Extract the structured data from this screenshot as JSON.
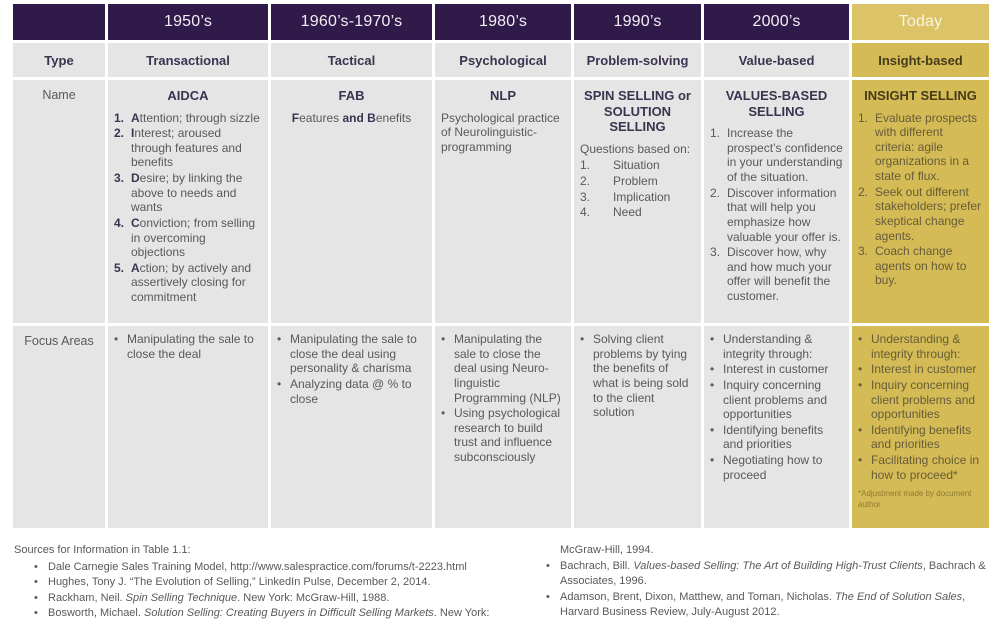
{
  "colors": {
    "header_purple": "#301a4a",
    "today_header_gold": "#dcc368",
    "today_cell_gold": "#d5bb56",
    "cell_gray": "#e6e5e5",
    "body_text": "#595959",
    "heading_text": "#3b3350",
    "today_heading_text": "#453b1a",
    "today_body_text": "#655c38",
    "footnote_text": "#8e7a33"
  },
  "row_labels": {
    "type": "Type",
    "name": "Name",
    "focus": "Focus Areas"
  },
  "columns": [
    {
      "era": "1950’s",
      "type": "Transactional",
      "name": {
        "title": "AIDCA",
        "list": {
          "style": "boldfirst",
          "items": [
            [
              [
                "b",
                "A"
              ],
              [
                "t",
                "ttention; through sizzle"
              ]
            ],
            [
              [
                "b",
                "I"
              ],
              [
                "t",
                "nterest; aroused through features and benefits"
              ]
            ],
            [
              [
                "b",
                "D"
              ],
              [
                "t",
                "esire; by linking the above to needs and wants"
              ]
            ],
            [
              [
                "b",
                "C"
              ],
              [
                "t",
                "onviction; from selling in overcoming objections"
              ]
            ],
            [
              [
                "b",
                "A"
              ],
              [
                "t",
                "ction; by actively and assertively closing for commitment"
              ]
            ]
          ]
        }
      },
      "focus": {
        "items": [
          "Manipulating the sale to close the deal"
        ]
      }
    },
    {
      "era": "1960’s-1970’s",
      "type": "Tactical",
      "name": {
        "title": "FAB",
        "line": [
          [
            "b",
            "F"
          ],
          [
            "t",
            "eatures "
          ],
          [
            "b",
            "and"
          ],
          [
            "t",
            " "
          ],
          [
            "b",
            "B"
          ],
          [
            "t",
            "enefits"
          ]
        ]
      },
      "focus": {
        "items": [
          "Manipulating the sale to close the deal using personality & charisma",
          "Analyzing data @ % to close"
        ]
      }
    },
    {
      "era": "1980’s",
      "type": "Psychological",
      "name": {
        "title": "NLP",
        "paragraph": "Psychological practice of Neurolinguistic-programming"
      },
      "focus": {
        "items": [
          "Manipulating the sale to close the deal using Neuro-linguistic Programming (NLP)",
          "Using psychological research to build trust and influence subconsciously"
        ]
      }
    },
    {
      "era": "1990’s",
      "type": "Problem-solving",
      "name": {
        "title": "SPIN SELLING or SOLUTION SELLING",
        "intro": "Questions based on:",
        "list": {
          "style": "wide",
          "items": [
            "Situation",
            "Problem",
            "Implication",
            "Need"
          ]
        }
      },
      "focus": {
        "items": [
          "Solving client problems by tying the benefits of what is being sold to the client solution"
        ]
      }
    },
    {
      "era": "2000’s",
      "type": "Value-based",
      "name": {
        "title": "VALUES-BASED SELLING",
        "list": {
          "style": "plain",
          "items": [
            "Increase the prospect’s confidence in your understanding of the situation.",
            "Discover information that will help you emphasize how valuable your offer is.",
            "Discover how, why and how much your offer will benefit the customer."
          ]
        }
      },
      "focus": {
        "items": [
          "Understanding & integrity through:",
          "Interest in customer",
          "Inquiry concerning client problems and opportunities",
          "Identifying benefits and priorities",
          "Negotiating how to proceed"
        ]
      }
    },
    {
      "era": "Today",
      "today": true,
      "type": "Insight-based",
      "name": {
        "title": "INSIGHT SELLING",
        "list": {
          "style": "plain",
          "items": [
            "Evaluate prospects with different criteria: agile organizations in a state of flux.",
            "Seek out different stakeholders; prefer skeptical change agents.",
            "Coach change agents on how to buy."
          ]
        }
      },
      "focus": {
        "items": [
          "Understanding & integrity through:",
          "Interest in customer",
          "Inquiry concerning client problems and opportunities",
          "Identifying benefits and priorities",
          "Facilitating choice in how to proceed*"
        ],
        "footnote": "*Adjustment made by document author"
      }
    }
  ],
  "sources": {
    "title": "Sources for Information in Table 1.1:",
    "left": [
      [
        [
          "t",
          "Dale Carnegie Sales Training Model, http://www.salespractice.com/forums/t-2223.html"
        ]
      ],
      [
        [
          "t",
          "Hughes, Tony J. “The Evolution of Selling,” LinkedIn Pulse, December 2, 2014."
        ]
      ],
      [
        [
          "t",
          "Rackham, Neil. "
        ],
        [
          "i",
          "Spin Selling Technique"
        ],
        [
          "t",
          ". New York: McGraw-Hill, 1988."
        ]
      ],
      [
        [
          "t",
          "Bosworth, Michael. "
        ],
        [
          "i",
          "Solution Selling: Creating Buyers in Difficult Selling Markets"
        ],
        [
          "t",
          ". New York:"
        ]
      ]
    ],
    "right_continuation": "McGraw-Hill, 1994.",
    "right": [
      [
        [
          "t",
          "Bachrach, Bill. "
        ],
        [
          "i",
          "Values-based Selling: The Art of Building High-Trust Clients"
        ],
        [
          "t",
          ", Bachrach & Associates, 1996."
        ]
      ],
      [
        [
          "t",
          "Adamson, Brent, Dixon, Matthew, and Toman, Nicholas. "
        ],
        [
          "i",
          "The End of Solution Sales"
        ],
        [
          "t",
          ", Harvard Business Review, July-August 2012."
        ]
      ]
    ]
  }
}
